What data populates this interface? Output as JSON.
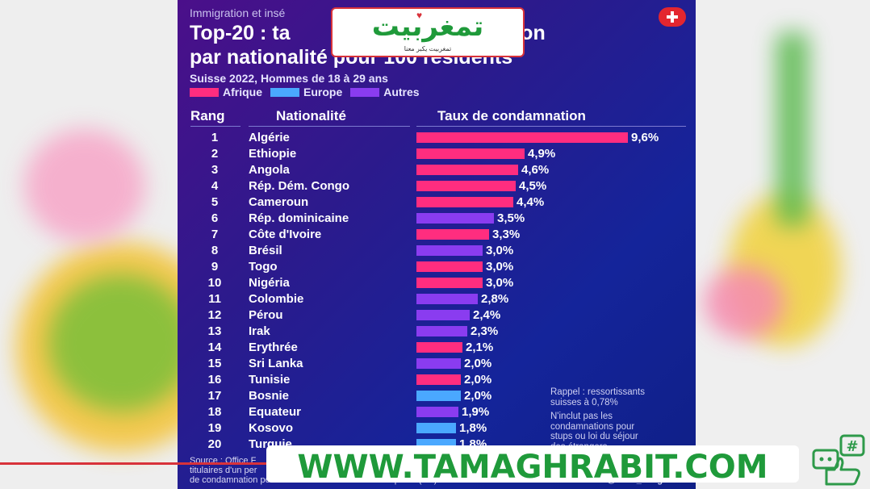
{
  "header": {
    "kicker": "Immigration et insé",
    "title_line1": "Top-20 : ta",
    "title_line1_end": "nnation",
    "title_line2": "par nationalité pour 100 résidents",
    "subtitle": "Suisse 2022, Hommes de 18 à 29 ans"
  },
  "legend": [
    {
      "label": "Afrique",
      "color": "#ff2d7f"
    },
    {
      "label": "Europe",
      "color": "#4aa8ff"
    },
    {
      "label": "Autres",
      "color": "#8a3cf0"
    }
  ],
  "columns": {
    "rank": "Rang",
    "country": "Nationalité",
    "rate": "Taux de condamnation"
  },
  "chart_data": {
    "type": "bar",
    "orientation": "horizontal",
    "unit": "%",
    "xlim": [
      0,
      10
    ],
    "rows": [
      {
        "rank": "1",
        "country": "Algérie",
        "value": 9.6,
        "label": "9,6%",
        "group": "Afrique"
      },
      {
        "rank": "2",
        "country": "Ethiopie",
        "value": 4.9,
        "label": "4,9%",
        "group": "Afrique"
      },
      {
        "rank": "3",
        "country": "Angola",
        "value": 4.6,
        "label": "4,6%",
        "group": "Afrique"
      },
      {
        "rank": "4",
        "country": "Rép. Dém. Congo",
        "value": 4.5,
        "label": "4,5%",
        "group": "Afrique"
      },
      {
        "rank": "5",
        "country": "Cameroun",
        "value": 4.4,
        "label": "4,4%",
        "group": "Afrique"
      },
      {
        "rank": "6",
        "country": "Rép. dominicaine",
        "value": 3.5,
        "label": "3,5%",
        "group": "Autres"
      },
      {
        "rank": "7",
        "country": "Côte d'Ivoire",
        "value": 3.3,
        "label": "3,3%",
        "group": "Afrique"
      },
      {
        "rank": "8",
        "country": "Brésil",
        "value": 3.0,
        "label": "3,0%",
        "group": "Autres"
      },
      {
        "rank": "9",
        "country": "Togo",
        "value": 3.0,
        "label": "3,0%",
        "group": "Afrique"
      },
      {
        "rank": "10",
        "country": "Nigéria",
        "value": 3.0,
        "label": "3,0%",
        "group": "Afrique"
      },
      {
        "rank": "11",
        "country": "Colombie",
        "value": 2.8,
        "label": "2,8%",
        "group": "Autres"
      },
      {
        "rank": "12",
        "country": "Pérou",
        "value": 2.4,
        "label": "2,4%",
        "group": "Autres"
      },
      {
        "rank": "13",
        "country": "Irak",
        "value": 2.3,
        "label": "2,3%",
        "group": "Autres"
      },
      {
        "rank": "14",
        "country": "Erythrée",
        "value": 2.1,
        "label": "2,1%",
        "group": "Afrique"
      },
      {
        "rank": "15",
        "country": "Sri Lanka",
        "value": 2.0,
        "label": "2,0%",
        "group": "Autres"
      },
      {
        "rank": "16",
        "country": "Tunisie",
        "value": 2.0,
        "label": "2,0%",
        "group": "Afrique"
      },
      {
        "rank": "17",
        "country": "Bosnie",
        "value": 2.0,
        "label": "2,0%",
        "group": "Europe"
      },
      {
        "rank": "18",
        "country": "Equateur",
        "value": 1.9,
        "label": "1,9%",
        "group": "Autres"
      },
      {
        "rank": "19",
        "country": "Kosovo",
        "value": 1.8,
        "label": "1,8%",
        "group": "Europe"
      },
      {
        "rank": "20",
        "country": "Turquie",
        "value": 1.8,
        "label": "1,8%",
        "group": "Europe"
      }
    ]
  },
  "notes": {
    "rappel_1": "Rappel : ressortissants",
    "rappel_2": "suisses à 0,78%",
    "excl_1": "N'inclut pas les",
    "excl_2": "condamnations pour",
    "excl_3": "stups ou loi du séjour",
    "excl_4": "des étrangers"
  },
  "source": {
    "line1": "Source : Office F",
    "line2": "titulaires d'un per",
    "line3": "de condamnation pour un crime ou un délit du code pénal (CP)",
    "handle": "@Marc_Vanguard"
  },
  "watermark": {
    "logo_text": "تمغربيت",
    "logo_subtitle": "تمغربيت يكبر معنا",
    "banner_text": "WWW.TAMAGHRABIT.COM"
  }
}
